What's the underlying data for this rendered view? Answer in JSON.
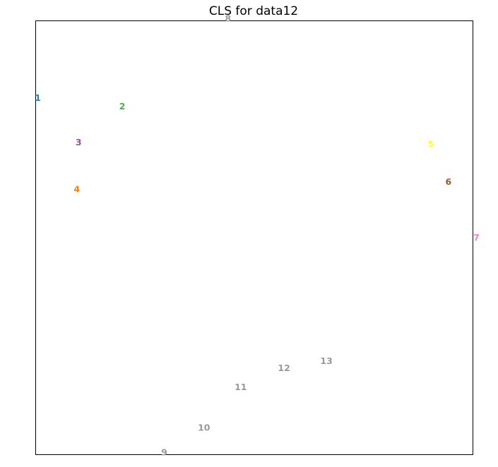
{
  "chart_data": {
    "type": "scatter",
    "title": "CLS for data12",
    "xlabel": "",
    "ylabel": "",
    "xlim": [
      0,
      1
    ],
    "ylim": [
      0,
      1
    ],
    "grid": false,
    "axis_ticks": false,
    "points": [
      {
        "label": "1",
        "x": 0.005,
        "y": 0.823,
        "color": "#377eb8"
      },
      {
        "label": "2",
        "x": 0.198,
        "y": 0.803,
        "color": "#4daf4a"
      },
      {
        "label": "3",
        "x": 0.098,
        "y": 0.72,
        "color": "#984ea3"
      },
      {
        "label": "4",
        "x": 0.094,
        "y": 0.612,
        "color": "#ff7f00"
      },
      {
        "label": "5",
        "x": 0.903,
        "y": 0.716,
        "color": "#ffff33"
      },
      {
        "label": "6",
        "x": 0.944,
        "y": 0.629,
        "color": "#a65628"
      },
      {
        "label": "7",
        "x": 1.008,
        "y": 0.501,
        "color": "#f781bf"
      },
      {
        "label": "8",
        "x": 0.44,
        "y": 1.006,
        "color": "#999999"
      },
      {
        "label": "9",
        "x": 0.294,
        "y": 0.006,
        "color": "#999999"
      },
      {
        "label": "10",
        "x": 0.385,
        "y": 0.063,
        "color": "#999999"
      },
      {
        "label": "11",
        "x": 0.469,
        "y": 0.156,
        "color": "#999999"
      },
      {
        "label": "12",
        "x": 0.568,
        "y": 0.2,
        "color": "#999999"
      },
      {
        "label": "13",
        "x": 0.665,
        "y": 0.216,
        "color": "#999999"
      }
    ]
  }
}
